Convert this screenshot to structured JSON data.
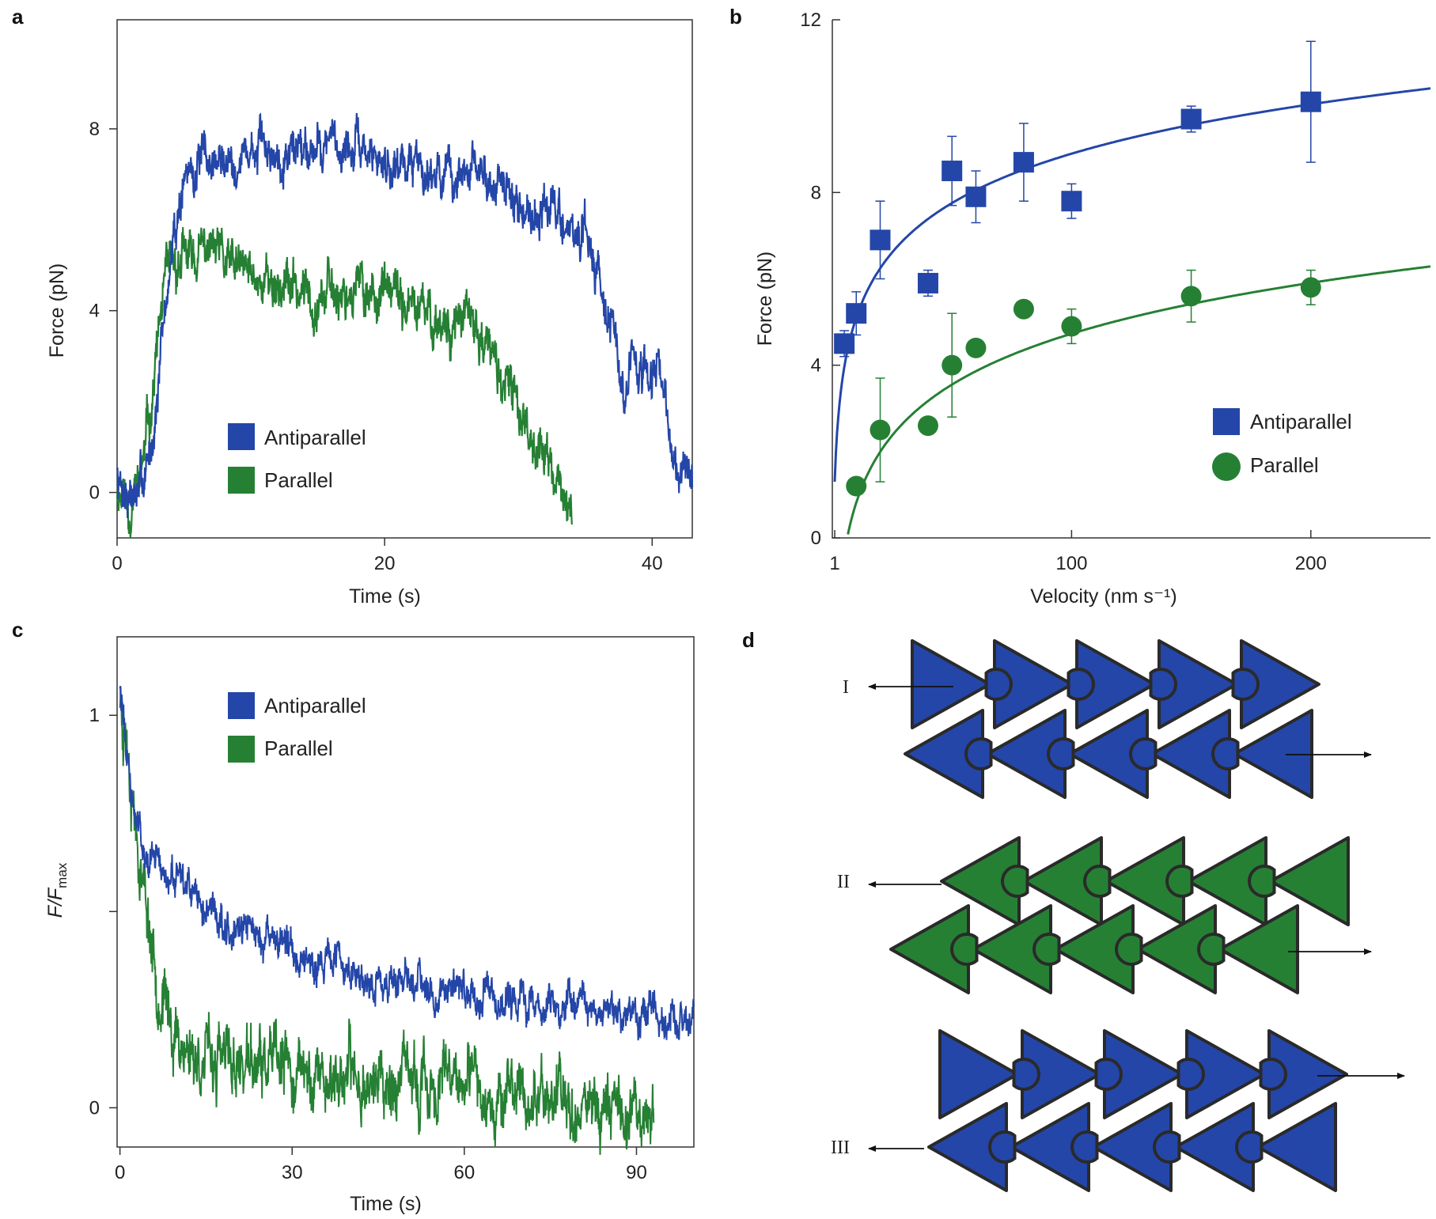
{
  "colors": {
    "antiparallel": "#2446a8",
    "parallel": "#268034",
    "edge": "#2a2a2a"
  },
  "chart_data": [
    {
      "panel": "a",
      "type": "line",
      "xlabel": "Time (s)",
      "ylabel": "Force (pN)",
      "xlim": [
        0,
        43
      ],
      "ylim": [
        -1,
        10.4
      ],
      "xticks": [
        "0",
        "20",
        "40"
      ],
      "yticks": [
        "0",
        "4",
        "8"
      ],
      "legend": [
        "Antiparallel",
        "Parallel"
      ],
      "series": [
        {
          "name": "Antiparallel",
          "color": "#2446a8",
          "x": [
            0,
            0.5,
            1,
            1.5,
            2,
            2.5,
            3,
            3.5,
            4,
            4.5,
            5,
            5.5,
            6,
            8,
            10,
            12,
            14,
            16,
            18,
            20,
            22,
            24,
            25,
            26,
            27,
            28,
            29,
            30,
            31,
            32,
            33,
            34,
            35,
            36,
            36.5,
            37,
            37.5,
            38,
            38.5,
            39,
            40,
            40.5,
            41,
            41.5,
            42,
            43
          ],
          "y": [
            0.4,
            0.1,
            0,
            -0.1,
            0.3,
            0.9,
            2.2,
            3.7,
            5.0,
            6.1,
            6.9,
            7.1,
            7.2,
            7.3,
            7.5,
            7.5,
            7.7,
            7.7,
            7.5,
            7.3,
            7.3,
            7.1,
            6.8,
            7.0,
            7.0,
            6.9,
            6.6,
            6.3,
            6.2,
            6.3,
            6.1,
            5.7,
            5.5,
            5.0,
            4.3,
            3.7,
            2.8,
            1.8,
            3.2,
            2.4,
            2.4,
            2.9,
            1.6,
            1.0,
            0.5,
            0.3
          ]
        },
        {
          "name": "Parallel",
          "color": "#268034",
          "x": [
            0,
            0.5,
            1,
            1.5,
            2,
            2.5,
            3,
            3.5,
            4,
            4.5,
            5,
            6,
            7,
            8,
            10,
            12,
            14,
            16,
            18,
            20,
            22,
            24,
            25,
            26,
            27,
            28,
            29,
            30,
            31,
            32,
            33,
            34
          ],
          "y": [
            0.2,
            0,
            -0.3,
            0.1,
            0.8,
            1.9,
            3.2,
            4.4,
            4.9,
            5.0,
            5.1,
            5.2,
            5.4,
            5.0,
            4.8,
            4.6,
            4.4,
            4.4,
            4.5,
            4.4,
            4.0,
            3.8,
            3.7,
            3.8,
            3.5,
            3.0,
            2.3,
            1.9,
            1.3,
            0.8,
            0.2,
            -0.6
          ]
        }
      ]
    },
    {
      "panel": "b",
      "type": "scatter",
      "xlabel": "Velocity (nm s⁻¹)",
      "ylabel": "Force (pN)",
      "xlim": [
        0,
        250
      ],
      "ylim": [
        0,
        12
      ],
      "xticks": [
        "1",
        "100",
        "200"
      ],
      "yticks": [
        "0",
        "4",
        "8",
        "12"
      ],
      "legend": [
        "Antiparallel",
        "Parallel"
      ],
      "series": [
        {
          "name": "Antiparallel",
          "color": "#2446a8",
          "marker": "square",
          "x": [
            5,
            10,
            20,
            40,
            50,
            60,
            80,
            100,
            150,
            200
          ],
          "y": [
            4.5,
            5.2,
            6.9,
            5.9,
            8.5,
            7.9,
            8.7,
            7.8,
            9.7,
            10.1
          ],
          "err": [
            0.3,
            0.5,
            0.9,
            0.3,
            0.8,
            0.6,
            0.9,
            0.4,
            0.3,
            1.4
          ],
          "fit": "logarithmic"
        },
        {
          "name": "Parallel",
          "color": "#268034",
          "marker": "circle",
          "x": [
            10,
            20,
            40,
            50,
            60,
            80,
            100,
            150,
            200
          ],
          "y": [
            1.2,
            2.5,
            2.6,
            4.0,
            4.4,
            5.3,
            4.9,
            5.6,
            5.8
          ],
          "err": [
            0,
            1.2,
            0,
            1.2,
            0,
            0,
            0.4,
            0.6,
            0.4
          ],
          "fit": "logarithmic"
        }
      ]
    },
    {
      "panel": "c",
      "type": "line",
      "xlabel": "Time (s)",
      "ylabel": "F/Fmax",
      "xlim": [
        -0.5,
        100
      ],
      "ylim": [
        -0.1,
        1.2
      ],
      "xticks": [
        "0",
        "30",
        "60",
        "90"
      ],
      "yticks": [
        "0",
        "1"
      ],
      "legend": [
        "Antiparallel",
        "Parallel"
      ],
      "series": [
        {
          "name": "Antiparallel",
          "color": "#2446a8",
          "x": [
            0,
            1,
            2,
            3,
            4,
            5,
            7,
            10,
            15,
            20,
            25,
            30,
            35,
            40,
            45,
            50,
            55,
            60,
            65,
            70,
            75,
            80,
            85,
            90,
            95,
            100
          ],
          "y": [
            1.1,
            0.92,
            0.8,
            0.72,
            0.68,
            0.65,
            0.61,
            0.56,
            0.51,
            0.46,
            0.43,
            0.41,
            0.38,
            0.35,
            0.32,
            0.33,
            0.31,
            0.29,
            0.28,
            0.27,
            0.27,
            0.26,
            0.25,
            0.24,
            0.23,
            0.22
          ]
        },
        {
          "name": "Parallel",
          "color": "#268034",
          "x": [
            0,
            1,
            2,
            3,
            4,
            5,
            6,
            7,
            8,
            10,
            12,
            15,
            20,
            25,
            30,
            35,
            40,
            45,
            50,
            55,
            60,
            65,
            70,
            75,
            80,
            85,
            90,
            93
          ],
          "y": [
            1.05,
            0.97,
            0.85,
            0.7,
            0.58,
            0.48,
            0.38,
            0.3,
            0.25,
            0.18,
            0.15,
            0.12,
            0.11,
            0.1,
            0.09,
            0.08,
            0.08,
            0.07,
            0.06,
            0.05,
            0.05,
            0.04,
            0.03,
            0.03,
            0.02,
            0.01,
            0.0,
            0.0
          ]
        }
      ]
    }
  ],
  "panels": {
    "a": {
      "letter": "a"
    },
    "b": {
      "letter": "b"
    },
    "c": {
      "letter": "c"
    },
    "d": {
      "letter": "d",
      "roman": [
        "I",
        "II",
        "III"
      ]
    }
  }
}
